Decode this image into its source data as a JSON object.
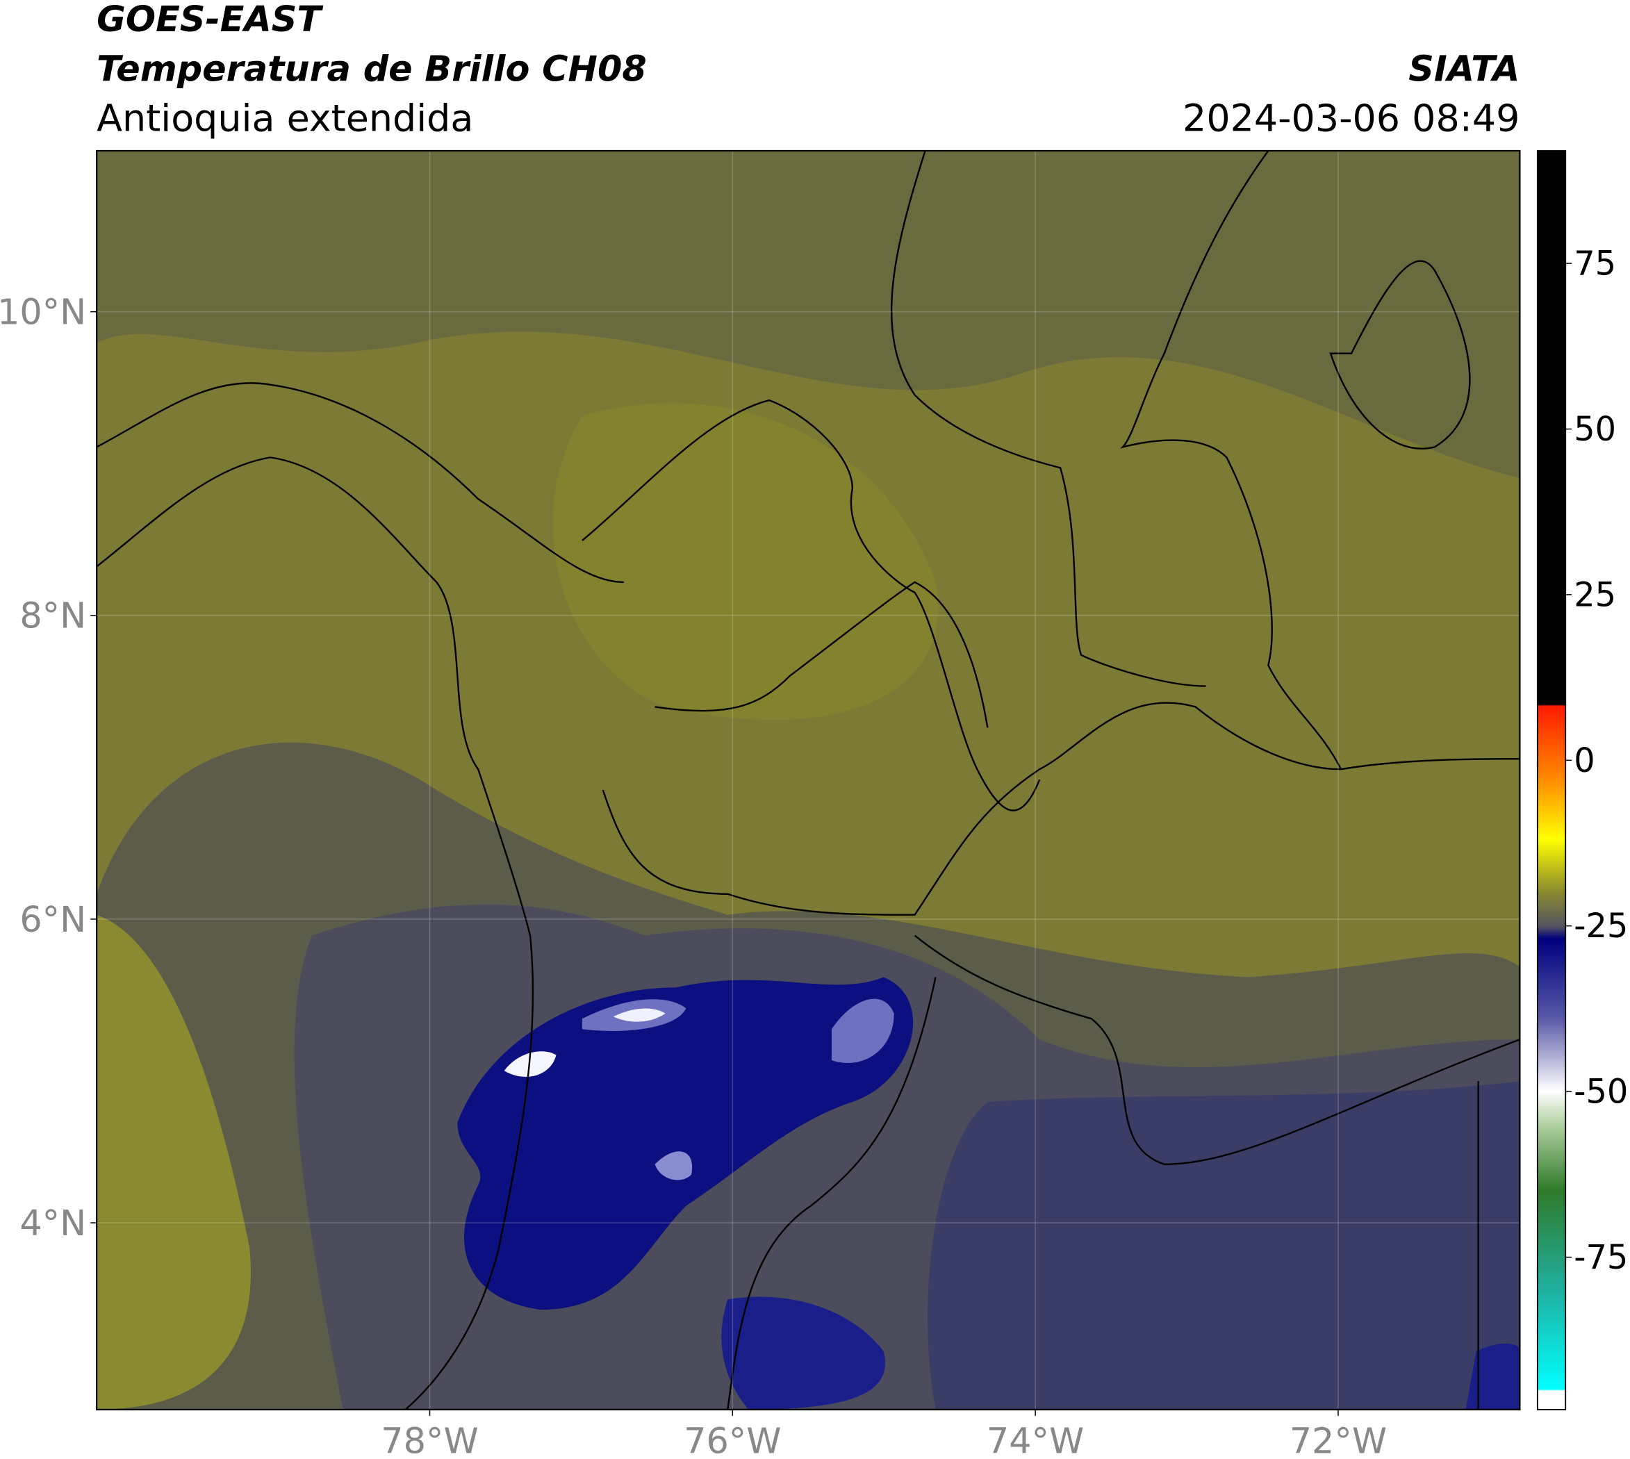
{
  "header": {
    "satellite": "GOES-EAST",
    "product": "Temperatura de Brillo CH08",
    "region": "Antioquia extendida",
    "source": "SIATA",
    "datetime": "2024-03-06 08:49"
  },
  "map": {
    "xlim": [
      -80.2,
      -70.8
    ],
    "ylim": [
      2.77,
      11.06
    ],
    "xticks": [
      {
        "value": -78,
        "label": "78°W"
      },
      {
        "value": -76,
        "label": "76°W"
      },
      {
        "value": -74,
        "label": "74°W"
      },
      {
        "value": -72,
        "label": "72°W"
      }
    ],
    "yticks": [
      {
        "value": 4,
        "label": "4°N"
      },
      {
        "value": 6,
        "label": "6°N"
      },
      {
        "value": 8,
        "label": "8°N"
      },
      {
        "value": 10,
        "label": "10°N"
      }
    ],
    "grid": true
  },
  "colorbar": {
    "lim": [
      -98,
      92
    ],
    "ticks": [
      75,
      50,
      25,
      0,
      -25,
      -50,
      -75
    ]
  }
}
